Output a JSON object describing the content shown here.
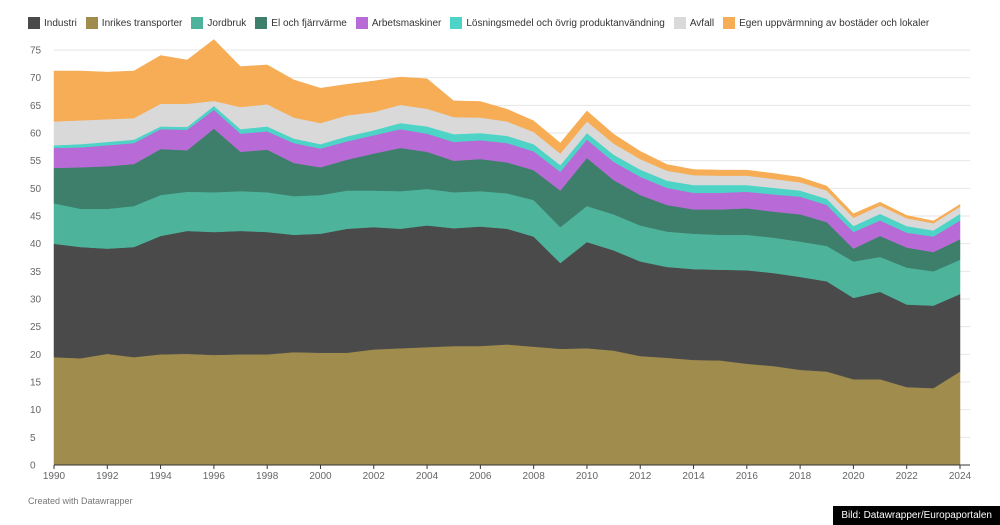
{
  "chart_data": {
    "type": "area",
    "stacked": true,
    "title": "",
    "xlabel": "",
    "ylabel": "",
    "ylim": [
      0,
      75
    ],
    "yticks": [
      0,
      5,
      10,
      15,
      20,
      25,
      30,
      35,
      40,
      45,
      50,
      55,
      60,
      65,
      70,
      75
    ],
    "xticks": [
      1990,
      1992,
      1994,
      1996,
      1998,
      2000,
      2002,
      2004,
      2006,
      2008,
      2010,
      2012,
      2014,
      2016,
      2018,
      2020,
      2022,
      2024
    ],
    "grid": true,
    "legend_position": "top-left",
    "x": [
      1990,
      1991,
      1992,
      1993,
      1994,
      1995,
      1996,
      1997,
      1998,
      1999,
      2000,
      2001,
      2002,
      2003,
      2004,
      2005,
      2006,
      2007,
      2008,
      2009,
      2010,
      2011,
      2012,
      2013,
      2014,
      2015,
      2016,
      2017,
      2018,
      2019,
      2020,
      2021,
      2022,
      2023,
      2024
    ],
    "series": [
      {
        "name": "Inrikes transporter",
        "color": "#a08c4c",
        "values": [
          19.5,
          19.3,
          20.1,
          19.5,
          20.0,
          20.1,
          19.9,
          20.0,
          20.0,
          20.4,
          20.3,
          20.3,
          20.9,
          21.1,
          21.3,
          21.5,
          21.5,
          21.8,
          21.4,
          21.0,
          21.1,
          20.7,
          19.7,
          19.4,
          19.0,
          18.9,
          18.3,
          17.9,
          17.2,
          16.9,
          15.5,
          15.5,
          14.1,
          13.9,
          16.9
        ]
      },
      {
        "name": "Industri",
        "color": "#4a4a4a",
        "values": [
          20.5,
          20.1,
          19.0,
          19.9,
          21.4,
          22.2,
          22.2,
          22.3,
          22.1,
          21.2,
          21.5,
          22.4,
          22.1,
          21.6,
          22.0,
          21.3,
          21.6,
          20.9,
          19.9,
          15.5,
          19.2,
          18.1,
          17.1,
          16.4,
          16.4,
          16.4,
          16.9,
          16.8,
          16.8,
          16.3,
          14.7,
          15.8,
          14.9,
          14.9,
          14.0
        ]
      },
      {
        "name": "Jordbruk",
        "color": "#4db39b",
        "values": [
          7.3,
          6.9,
          7.2,
          7.4,
          7.4,
          7.1,
          7.2,
          7.2,
          7.2,
          7.0,
          7.0,
          6.9,
          6.6,
          6.8,
          6.6,
          6.5,
          6.4,
          6.4,
          6.6,
          6.5,
          6.5,
          6.5,
          6.5,
          6.4,
          6.4,
          6.3,
          6.4,
          6.4,
          6.4,
          6.4,
          6.6,
          6.3,
          6.7,
          6.2,
          6.2
        ]
      },
      {
        "name": "El och fjärrvärme",
        "color": "#3e7f6b",
        "values": [
          6.4,
          7.5,
          7.7,
          7.6,
          8.3,
          7.5,
          11.5,
          7.1,
          7.7,
          6.0,
          5.0,
          5.6,
          6.7,
          7.8,
          6.7,
          5.7,
          5.8,
          5.6,
          5.4,
          6.6,
          8.7,
          6.2,
          5.5,
          4.8,
          4.4,
          4.6,
          4.8,
          4.7,
          4.9,
          4.3,
          2.3,
          3.8,
          3.6,
          3.5,
          3.7
        ]
      },
      {
        "name": "Arbetsmaskiner",
        "color": "#b86ad6",
        "values": [
          3.6,
          3.6,
          3.8,
          3.8,
          3.6,
          3.7,
          3.4,
          3.3,
          3.3,
          3.6,
          3.4,
          3.3,
          3.3,
          3.4,
          3.3,
          3.4,
          3.4,
          3.5,
          3.4,
          3.4,
          3.3,
          3.3,
          3.3,
          3.1,
          3.0,
          3.0,
          3.0,
          3.1,
          3.2,
          3.1,
          3.0,
          2.8,
          2.7,
          2.8,
          3.4
        ]
      },
      {
        "name": "Lösningsmedel och övrig produktanvändning",
        "color": "#4dd4c6",
        "values": [
          0.5,
          0.6,
          0.6,
          0.6,
          0.5,
          0.5,
          0.7,
          0.8,
          0.9,
          0.8,
          0.8,
          0.9,
          0.9,
          1.1,
          1.3,
          1.4,
          1.3,
          1.3,
          1.3,
          1.2,
          1.2,
          1.3,
          1.3,
          1.3,
          1.4,
          1.4,
          1.2,
          1.2,
          1.1,
          1.1,
          1.1,
          1.2,
          1.2,
          1.1,
          1.2
        ]
      },
      {
        "name": "Avfall",
        "color": "#d9d9d9",
        "values": [
          4.3,
          4.3,
          4.1,
          3.9,
          4.1,
          4.2,
          0.9,
          4.0,
          4.0,
          3.8,
          3.8,
          3.8,
          3.3,
          3.3,
          3.2,
          3.1,
          2.8,
          2.6,
          2.2,
          2.1,
          2.1,
          2.0,
          1.9,
          1.8,
          1.8,
          1.7,
          1.7,
          1.6,
          1.5,
          1.5,
          1.5,
          1.5,
          1.4,
          1.3,
          1.3
        ]
      },
      {
        "name": "Egen uppvärmning av bostäder och lokaler",
        "color": "#f6ad55",
        "values": [
          9.1,
          8.9,
          8.5,
          8.5,
          8.7,
          7.9,
          11.1,
          7.3,
          7.1,
          6.8,
          6.3,
          5.6,
          5.6,
          5.0,
          5.4,
          2.9,
          2.9,
          2.2,
          2.0,
          1.9,
          1.9,
          1.7,
          1.4,
          1.1,
          1.0,
          1.0,
          1.0,
          1.0,
          0.9,
          0.8,
          0.7,
          0.6,
          0.5,
          0.4,
          0.4
        ]
      }
    ],
    "legend_order": [
      "Industri",
      "Inrikes transporter",
      "Jordbruk",
      "El och fjärrvärme",
      "Arbetsmaskiner",
      "Lösningsmedel och övrig produktanvändning",
      "Avfall",
      "Egen uppvärmning av bostäder och lokaler"
    ]
  },
  "footer": {
    "credit": "Created with Datawrapper",
    "source": "Bild: Datawrapper/Europaportalen"
  }
}
